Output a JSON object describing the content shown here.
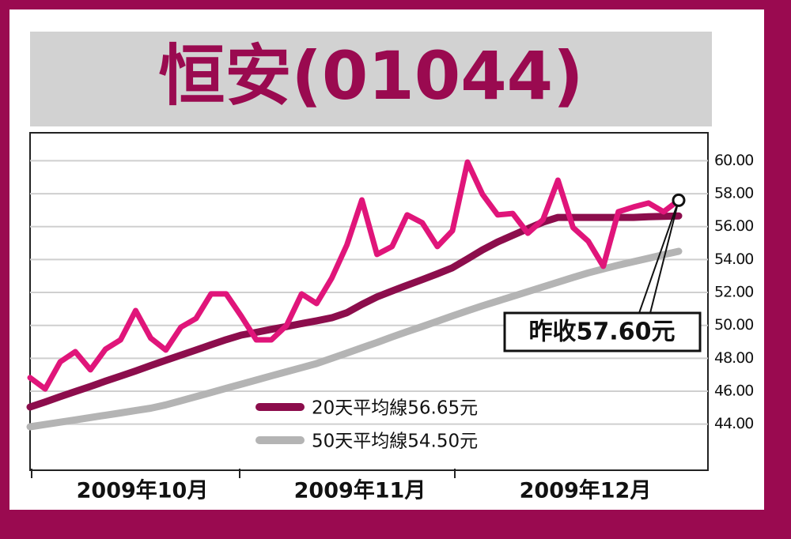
{
  "chart_data": {
    "type": "line",
    "title": "恒安(01044)",
    "categories": [
      null,
      null,
      null,
      null,
      null,
      null,
      null,
      null,
      null,
      null,
      null,
      null,
      null,
      null,
      null,
      null,
      null,
      null,
      null,
      null,
      null,
      null,
      null,
      null,
      null,
      null,
      null,
      null,
      null,
      null,
      null,
      null,
      null,
      null,
      null,
      null,
      null,
      null,
      null,
      null,
      null,
      null,
      null,
      null
    ],
    "x_labels": [
      "2009年10月",
      "2009年11月",
      "2009年12月"
    ],
    "series": [
      {
        "name": "20天平均線56.65元",
        "color": "#8c0d4c",
        "values": [
          45.04,
          45.35,
          45.67,
          45.98,
          46.29,
          46.61,
          46.92,
          47.23,
          47.56,
          47.88,
          48.19,
          48.5,
          48.82,
          49.13,
          49.41,
          49.58,
          49.76,
          49.93,
          50.11,
          50.28,
          50.46,
          50.77,
          51.27,
          51.73,
          52.09,
          52.44,
          52.78,
          53.13,
          53.5,
          54.04,
          54.59,
          55.07,
          55.47,
          55.87,
          56.27,
          56.56,
          56.56,
          56.56,
          56.56,
          56.56,
          56.56,
          56.6,
          56.62,
          56.65
        ]
      },
      {
        "name": "50天平均線54.50元",
        "color": "#b4b4b4",
        "values": [
          43.84,
          43.98,
          44.12,
          44.26,
          44.4,
          44.54,
          44.68,
          44.83,
          44.97,
          45.17,
          45.42,
          45.67,
          45.92,
          46.18,
          46.43,
          46.68,
          46.93,
          47.18,
          47.43,
          47.68,
          48.0,
          48.32,
          48.64,
          48.96,
          49.3,
          49.62,
          49.93,
          50.25,
          50.57,
          50.89,
          51.19,
          51.48,
          51.76,
          52.05,
          52.34,
          52.62,
          52.91,
          53.19,
          53.43,
          53.66,
          53.87,
          54.08,
          54.29,
          54.5
        ]
      },
      {
        "color": "#e0157a",
        "values": [
          46.82,
          46.14,
          47.78,
          48.4,
          47.3,
          48.55,
          49.12,
          50.9,
          49.22,
          48.5,
          49.89,
          50.42,
          51.91,
          51.91,
          50.56,
          49.12,
          49.12,
          49.99,
          51.91,
          51.33,
          52.87,
          54.88,
          57.62,
          54.31,
          54.79,
          56.71,
          56.23,
          54.79,
          55.75,
          59.92,
          57.95,
          56.71,
          56.8,
          55.6,
          56.42,
          58.82,
          55.94,
          55.12,
          53.59,
          56.9,
          57.19,
          57.43,
          56.9,
          57.6
        ]
      }
    ],
    "annotation": "昨收57.60元",
    "ylim": [
      41.2,
      61.7
    ],
    "yticks": [
      {
        "value": 44,
        "label": "44.00"
      },
      {
        "value": 46,
        "label": "46.00"
      },
      {
        "value": 48,
        "label": "48.00"
      },
      {
        "value": 50,
        "label": "50.00"
      },
      {
        "value": 52,
        "label": "52.00"
      },
      {
        "value": 54,
        "label": "54.00"
      },
      {
        "value": 56,
        "label": "56.00"
      },
      {
        "value": 58,
        "label": "58.00"
      },
      {
        "value": 60,
        "label": "60.00"
      }
    ],
    "grid": true
  }
}
